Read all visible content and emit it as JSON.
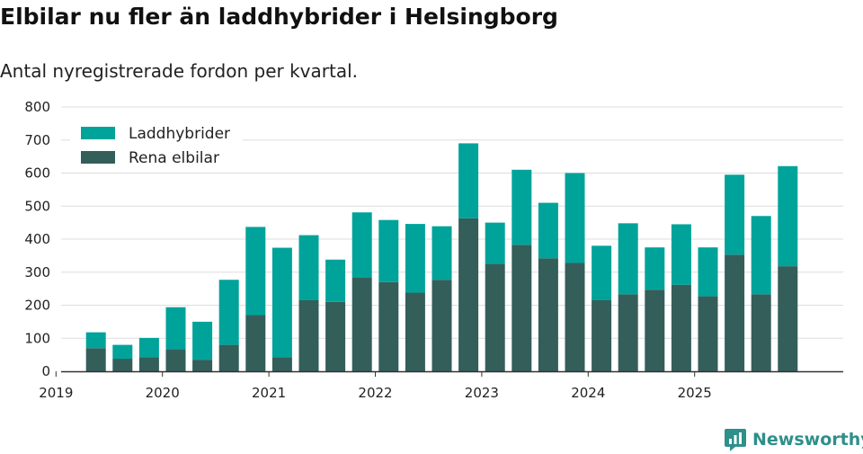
{
  "chart_data": {
    "type": "bar",
    "stacked": true,
    "title": "Elbilar nu fler än laddhybrider i Helsingborg",
    "subtitle": "Antal nyregistrerade fordon per kvartal.",
    "xlabel": "",
    "ylabel": "",
    "ylim": [
      0,
      800
    ],
    "yticks": [
      "0",
      "100",
      "200",
      "300",
      "400",
      "500",
      "600",
      "700",
      "800"
    ],
    "ytick_values": [
      0,
      100,
      200,
      300,
      400,
      500,
      600,
      700,
      800
    ],
    "xticks": [
      "2019",
      "2020",
      "2021",
      "2022",
      "2023",
      "2024",
      "2025"
    ],
    "categories": [
      "2019 Q2",
      "2019 Q3",
      "2019 Q4",
      "2020 Q1",
      "2020 Q2",
      "2020 Q3",
      "2020 Q4",
      "2021 Q1",
      "2021 Q2",
      "2021 Q3",
      "2021 Q4",
      "2022 Q1",
      "2022 Q2",
      "2022 Q3",
      "2022 Q4",
      "2023 Q1",
      "2023 Q2",
      "2023 Q3",
      "2023 Q4",
      "2024 Q1",
      "2024 Q2",
      "2024 Q3",
      "2024 Q4",
      "2025 Q1",
      "2025 Q2",
      "2025 Q3",
      "2025 Q4"
    ],
    "series": [
      {
        "name": "Rena elbilar",
        "color": "#345e5a",
        "values": [
          70,
          38,
          43,
          67,
          35,
          80,
          170,
          42,
          215,
          210,
          283,
          270,
          238,
          277,
          463,
          325,
          383,
          342,
          328,
          215,
          233,
          247,
          262,
          227,
          353,
          233,
          318
        ]
      },
      {
        "name": "Laddhybrider",
        "color": "#00a39a",
        "values": [
          48,
          42,
          58,
          127,
          115,
          197,
          267,
          332,
          197,
          128,
          198,
          188,
          208,
          162,
          227,
          125,
          227,
          168,
          272,
          165,
          215,
          128,
          183,
          148,
          242,
          237,
          303
        ]
      }
    ],
    "legend": [
      "Laddhybrider",
      "Rena elbilar"
    ],
    "legend_position": "top-left",
    "grid": true
  },
  "branding": {
    "name": "Newsworthy",
    "color": "#2f8f8a"
  }
}
